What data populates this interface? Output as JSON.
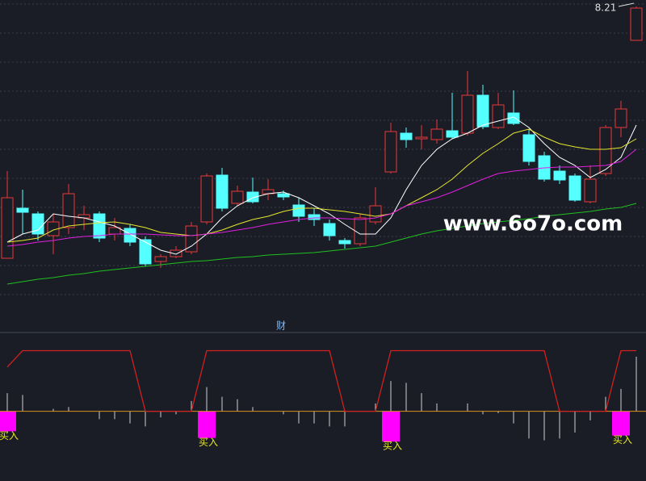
{
  "chart_data": [
    {
      "type": "candlestick",
      "ylim": [
        6.25,
        8.25
      ],
      "open": [
        6.65,
        6.96,
        6.925,
        6.79,
        6.84,
        6.9,
        6.925,
        6.8,
        6.835,
        6.765,
        6.63,
        6.66,
        6.69,
        6.875,
        7.165,
        6.99,
        7.06,
        7.05,
        7.05,
        6.98,
        6.92,
        6.865,
        6.76,
        6.74,
        6.875,
        7.185,
        7.425,
        7.39,
        7.385,
        7.44,
        7.425,
        7.66,
        7.46,
        7.55,
        7.415,
        7.285,
        7.19,
        7.16,
        7.0,
        7.175,
        7.46,
        8.0
      ],
      "high": [
        7.19,
        7.075,
        6.94,
        6.925,
        7.11,
        6.975,
        6.94,
        6.9,
        6.86,
        6.785,
        6.675,
        6.725,
        6.875,
        7.175,
        7.21,
        7.1,
        7.15,
        7.14,
        7.07,
        7.025,
        6.96,
        6.89,
        6.775,
        6.925,
        7.09,
        7.49,
        7.46,
        7.475,
        7.51,
        7.675,
        7.81,
        7.725,
        7.675,
        7.69,
        7.45,
        7.31,
        7.225,
        7.175,
        7.225,
        7.475,
        7.625,
        8.21
      ],
      "low": [
        6.65,
        6.8,
        6.76,
        6.675,
        6.8,
        6.825,
        6.75,
        6.76,
        6.725,
        6.6,
        6.59,
        6.65,
        6.675,
        6.86,
        6.94,
        6.975,
        6.99,
        7.01,
        7.01,
        6.875,
        6.85,
        6.76,
        6.71,
        6.725,
        6.86,
        7.175,
        7.335,
        7.325,
        7.36,
        7.39,
        7.41,
        7.45,
        7.45,
        7.475,
        7.225,
        7.125,
        7.11,
        7.0,
        6.99,
        7.16,
        7.4,
        8.0
      ],
      "close": [
        7.025,
        6.935,
        6.8,
        6.875,
        7.05,
        6.92,
        6.775,
        6.84,
        6.75,
        6.615,
        6.66,
        6.7,
        6.85,
        7.16,
        6.96,
        7.065,
        7.0,
        7.075,
        7.03,
        6.91,
        6.89,
        6.79,
        6.74,
        6.9,
        6.975,
        7.435,
        7.385,
        7.4,
        7.45,
        7.4,
        7.66,
        7.465,
        7.6,
        7.485,
        7.25,
        7.14,
        7.135,
        7.01,
        7.14,
        7.46,
        7.575,
        8.2
      ],
      "up_color": "#e8393a",
      "down_color": "#54ffff",
      "series": [
        {
          "color": "#ffffff",
          "values": [
            6.75,
            6.8,
            6.825,
            6.925,
            6.91,
            6.9,
            6.875,
            6.85,
            6.8,
            6.75,
            6.7,
            6.675,
            6.725,
            6.8,
            6.9,
            6.975,
            7.025,
            7.05,
            7.06,
            7.025,
            6.975,
            6.925,
            6.86,
            6.8,
            6.8,
            6.9,
            7.075,
            7.225,
            7.325,
            7.39,
            7.425,
            7.475,
            7.5,
            7.525,
            7.46,
            7.36,
            7.275,
            7.225,
            7.15,
            7.2,
            7.275,
            7.475
          ]
        },
        {
          "color": "#e6e62e",
          "values": [
            6.75,
            6.76,
            6.775,
            6.825,
            6.85,
            6.86,
            6.87,
            6.875,
            6.86,
            6.84,
            6.81,
            6.8,
            6.79,
            6.8,
            6.825,
            6.86,
            6.89,
            6.91,
            6.94,
            6.96,
            6.96,
            6.95,
            6.94,
            6.925,
            6.91,
            6.925,
            6.975,
            7.025,
            7.075,
            7.14,
            7.225,
            7.3,
            7.36,
            7.425,
            7.45,
            7.4,
            7.36,
            7.34,
            7.325,
            7.325,
            7.335,
            7.39
          ]
        },
        {
          "color": "#e020e0",
          "values": [
            6.725,
            6.735,
            6.75,
            6.76,
            6.775,
            6.785,
            6.79,
            6.8,
            6.8,
            6.8,
            6.795,
            6.79,
            6.79,
            6.8,
            6.81,
            6.825,
            6.84,
            6.86,
            6.875,
            6.89,
            6.9,
            6.9,
            6.895,
            6.89,
            6.9,
            6.925,
            6.975,
            7.0,
            7.025,
            7.06,
            7.1,
            7.14,
            7.175,
            7.19,
            7.2,
            7.21,
            7.215,
            7.215,
            7.22,
            7.225,
            7.25,
            7.325
          ]
        },
        {
          "color": "#20c020",
          "values": [
            6.49,
            6.505,
            6.52,
            6.53,
            6.545,
            6.555,
            6.57,
            6.58,
            6.59,
            6.6,
            6.61,
            6.62,
            6.63,
            6.635,
            6.645,
            6.655,
            6.66,
            6.67,
            6.675,
            6.68,
            6.685,
            6.695,
            6.705,
            6.715,
            6.725,
            6.75,
            6.775,
            6.8,
            6.82,
            6.835,
            6.85,
            6.865,
            6.875,
            6.885,
            6.895,
            6.91,
            6.92,
            6.93,
            6.94,
            6.955,
            6.965,
            6.99
          ]
        }
      ],
      "high_label": "8.21",
      "watermark": "www.6o7o.com"
    },
    {
      "type": "indicator",
      "title": "财",
      "ylim": [
        -115,
        130
      ],
      "line": {
        "color": "#d02020",
        "values": [
          73,
          100,
          100,
          100,
          100,
          100,
          100,
          100,
          100,
          0,
          0,
          0,
          0,
          100,
          100,
          100,
          100,
          100,
          100,
          100,
          100,
          100,
          0,
          0,
          0,
          100,
          100,
          100,
          100,
          100,
          100,
          100,
          100,
          100,
          100,
          100,
          0,
          0,
          0,
          0,
          100,
          100
        ]
      },
      "bars": {
        "color": "#d0d0d0",
        "values": [
          30,
          27,
          0,
          4,
          7,
          0,
          -13,
          -13,
          -20,
          -25,
          -10,
          -5,
          17,
          40,
          24,
          20,
          7,
          0,
          -5,
          -20,
          -20,
          -25,
          -25,
          0,
          13,
          50,
          47,
          30,
          13,
          0,
          13,
          -5,
          -3,
          -20,
          -45,
          -48,
          -45,
          -35,
          -15,
          24,
          37,
          90
        ]
      },
      "signal": {
        "color": "#ff00ff",
        "label": "买入",
        "values": [
          -33,
          null,
          null,
          null,
          null,
          null,
          null,
          null,
          null,
          null,
          null,
          null,
          null,
          -44,
          null,
          null,
          null,
          null,
          null,
          null,
          null,
          null,
          null,
          null,
          null,
          -50,
          null,
          null,
          null,
          null,
          null,
          null,
          null,
          null,
          null,
          null,
          null,
          null,
          null,
          null,
          -40,
          null
        ]
      }
    }
  ]
}
